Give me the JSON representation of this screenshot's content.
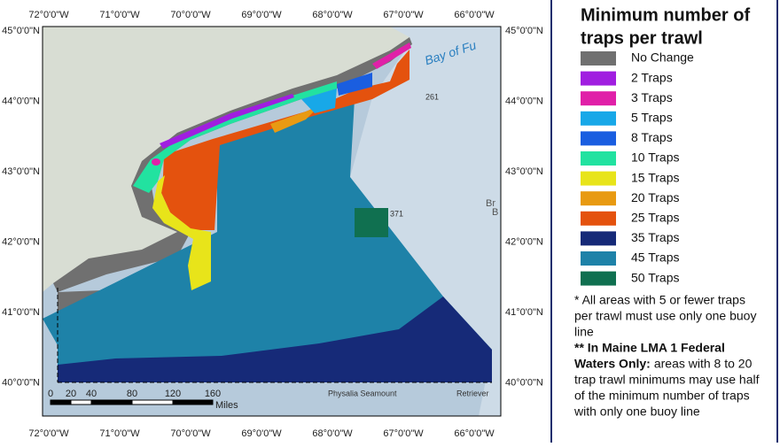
{
  "map": {
    "lon_labels": [
      "72°0'0\"W",
      "71°0'0\"W",
      "70°0'0\"W",
      "69°0'0\"W",
      "68°0'0\"W",
      "67°0'0\"W",
      "66°0'0\"W"
    ],
    "lat_labels": [
      "45°0'0\"N",
      "44°0'0\"N",
      "43°0'0\"N",
      "42°0'0\"N",
      "41°0'0\"N",
      "40°0'0\"N"
    ],
    "scale_labels": [
      "0",
      "20",
      "40",
      "80",
      "120",
      "160"
    ],
    "scale_unit": "Miles",
    "place_labels": [
      "Bay of Fu",
      "261",
      "371",
      "Physalia Seamount",
      "Retriever",
      "Br",
      "B"
    ]
  },
  "legend": {
    "title": [
      "Minimum number of",
      "traps per trawl"
    ],
    "items": [
      {
        "label": "No Change",
        "color": "#707070"
      },
      {
        "label": "2 Traps",
        "color": "#a01ee0"
      },
      {
        "label": "3 Traps",
        "color": "#e020a8"
      },
      {
        "label": "5 Traps",
        "color": "#18a8e8"
      },
      {
        "label": "8 Traps",
        "color": "#1a5ee0"
      },
      {
        "label": "10 Traps",
        "color": "#22e2a0"
      },
      {
        "label": "15 Traps",
        "color": "#e8e41a"
      },
      {
        "label": "20 Traps",
        "color": "#e89a12"
      },
      {
        "label": "25 Traps",
        "color": "#e4520e"
      },
      {
        "label": "35 Traps",
        "color": "#162a78"
      },
      {
        "label": "45 Traps",
        "color": "#1e82a8"
      },
      {
        "label": "50 Traps",
        "color": "#107050"
      }
    ],
    "note1": [
      "* All areas with 5 or fewer traps",
      "per trawl must use only one buoy",
      "line"
    ],
    "note2_bold": [
      "** In Maine LMA 1 Federal",
      "Waters Only:"
    ],
    "note2": [
      "areas with 8 to 20",
      "trap trawl minimums may use half",
      "of the minimum number of traps",
      "with only one buoy line"
    ]
  }
}
